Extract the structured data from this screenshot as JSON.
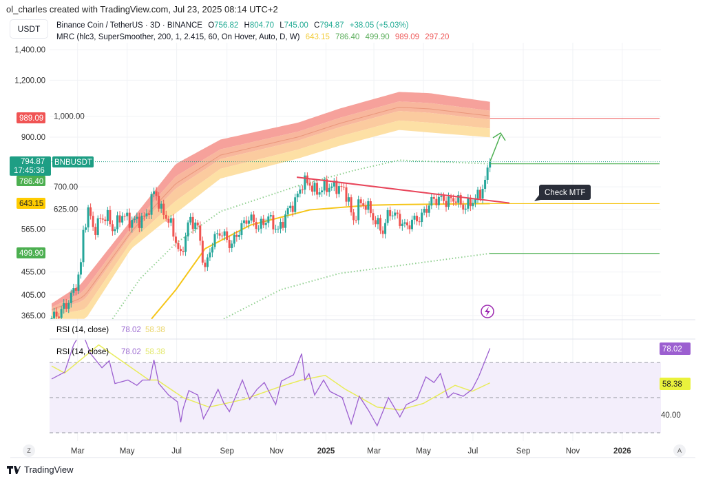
{
  "header": {
    "attribution": "ol_charles created with TradingView.com, Jul 23, 2025 08:14 UTC+2"
  },
  "currency_button": "USDT",
  "legend": {
    "symbol": "Binance Coin / TetherUS · 3D · BINANCE",
    "open_label": "O",
    "open": "756.82",
    "high_label": "H",
    "high": "804.70",
    "low_label": "L",
    "low": "745.00",
    "close_label": "C",
    "close": "794.87",
    "change": "+38.05 (+5.03%)",
    "mrc_name": "MRC (hlc3, SuperSmoother, 200, 1, 2.415, 60, On Hover, Auto, D, W)",
    "mrc_values": [
      "643.15",
      "786.40",
      "499.90",
      "989.09",
      "297.20"
    ]
  },
  "rsi_legend": {
    "name": "RSI (14, close)",
    "rsi": "78.02",
    "ma": "58.38"
  },
  "price_badges": {
    "r2": "989.09",
    "last": "794.87",
    "countdown": "17:45:36",
    "symbol": "BNBUSDT",
    "r1": "786.40",
    "mean": "643.15",
    "s1": "499.90"
  },
  "rsi_badges": {
    "rsi": "78.02",
    "ma": "58.38"
  },
  "annotation": {
    "label": "Check MTF"
  },
  "buttons": {
    "zoom_z": "Z",
    "auto_a": "A"
  },
  "footer": {
    "brand": "TradingView"
  },
  "colors": {
    "up": "#26a69a",
    "down": "#ef5350",
    "r2": "#f05454",
    "last": "#1e9e84",
    "band_green": "#4caf50",
    "mean": "#f5c518",
    "rsi": "#9c5fd0",
    "rsi_ma": "#e8ec5a",
    "trendline": "#e8455a",
    "arrow": "#4caf50",
    "annotation_bg": "#2a2e39"
  },
  "chart_data": [
    {
      "type": "candlestick",
      "title": "Binance Coin / TetherUS · 3D · BINANCE",
      "y_scale": "log",
      "y_ticks": [
        "1,400.00",
        "1,200.00",
        "1,000.00",
        "900.00",
        "700.00",
        "625.00",
        "565.00",
        "455.00",
        "405.00",
        "365.00"
      ],
      "x_ticks": [
        "Mar",
        "May",
        "Jul",
        "Sep",
        "Nov",
        "2025",
        "Mar",
        "May",
        "Jul",
        "Sep",
        "Nov",
        "2026"
      ],
      "x_range": [
        "2024-01-29",
        "2025-07-22"
      ],
      "grid": true,
      "close": [
        [
          "2024-01-29",
          360
        ],
        [
          "2024-02-08",
          370
        ],
        [
          "2024-02-18",
          390
        ],
        [
          "2024-02-27",
          420
        ],
        [
          "2024-03-05",
          470
        ],
        [
          "2024-03-08",
          560
        ],
        [
          "2024-03-14",
          620
        ],
        [
          "2024-03-22",
          560
        ],
        [
          "2024-03-30",
          600
        ],
        [
          "2024-04-08",
          600
        ],
        [
          "2024-04-14",
          560
        ],
        [
          "2024-04-24",
          610
        ],
        [
          "2024-05-04",
          590
        ],
        [
          "2024-05-14",
          590
        ],
        [
          "2024-05-24",
          600
        ],
        [
          "2024-06-04",
          690
        ],
        [
          "2024-06-12",
          620
        ],
        [
          "2024-06-22",
          590
        ],
        [
          "2024-07-02",
          520
        ],
        [
          "2024-07-06",
          490
        ],
        [
          "2024-07-16",
          590
        ],
        [
          "2024-07-26",
          580
        ],
        [
          "2024-08-05",
          460
        ],
        [
          "2024-08-14",
          530
        ],
        [
          "2024-08-24",
          560
        ],
        [
          "2024-09-06",
          520
        ],
        [
          "2024-09-18",
          570
        ],
        [
          "2024-09-28",
          600
        ],
        [
          "2024-10-10",
          570
        ],
        [
          "2024-10-22",
          600
        ],
        [
          "2024-11-03",
          560
        ],
        [
          "2024-11-15",
          620
        ],
        [
          "2024-11-24",
          650
        ],
        [
          "2024-12-04",
          720
        ],
        [
          "2024-12-12",
          710
        ],
        [
          "2024-12-20",
          680
        ],
        [
          "2024-12-30",
          700
        ],
        [
          "2025-01-08",
          700
        ],
        [
          "2025-01-18",
          700
        ],
        [
          "2025-01-28",
          670
        ],
        [
          "2025-02-03",
          580
        ],
        [
          "2025-02-10",
          640
        ],
        [
          "2025-02-20",
          640
        ],
        [
          "2025-03-02",
          590
        ],
        [
          "2025-03-12",
          560
        ],
        [
          "2025-03-20",
          620
        ],
        [
          "2025-03-30",
          600
        ],
        [
          "2025-04-09",
          570
        ],
        [
          "2025-04-18",
          590
        ],
        [
          "2025-04-28",
          600
        ],
        [
          "2025-05-10",
          650
        ],
        [
          "2025-05-20",
          660
        ],
        [
          "2025-05-30",
          650
        ],
        [
          "2025-06-10",
          660
        ],
        [
          "2025-06-20",
          630
        ],
        [
          "2025-06-30",
          650
        ],
        [
          "2025-07-08",
          670
        ],
        [
          "2025-07-14",
          700
        ],
        [
          "2025-07-18",
          740
        ],
        [
          "2025-07-22",
          794.87
        ]
      ],
      "mrc": {
        "upper_outer_cloud_top": [
          [
            "2024-01-29",
            388
          ],
          [
            "2024-03-04",
            426
          ],
          [
            "2024-05-06",
            591
          ],
          [
            "2024-06-30",
            786
          ],
          [
            "2024-08-24",
            889
          ],
          [
            "2024-11-28",
            969
          ],
          [
            "2025-01-18",
            1040
          ],
          [
            "2025-04-01",
            1131
          ],
          [
            "2025-05-09",
            1124
          ],
          [
            "2025-07-22",
            1076
          ]
        ],
        "upper_cloud_bottom": [
          [
            "2024-01-29",
            359
          ],
          [
            "2024-03-11",
            359
          ],
          [
            "2024-05-06",
            512
          ],
          [
            "2024-06-11",
            577
          ],
          [
            "2024-08-24",
            730
          ],
          [
            "2024-11-28",
            808
          ],
          [
            "2025-01-18",
            862
          ],
          [
            "2025-04-01",
            933
          ],
          [
            "2025-07-22",
            899
          ]
        ],
        "upper_inner": [
          [
            "2024-04-13",
            359
          ],
          [
            "2024-05-17",
            440
          ],
          [
            "2024-06-30",
            526
          ],
          [
            "2024-08-24",
            618
          ],
          [
            "2024-11-28",
            704
          ],
          [
            "2025-02-05",
            761
          ],
          [
            "2025-04-01",
            801
          ],
          [
            "2025-07-22",
            786.4
          ]
        ],
        "mean": [
          [
            "2024-05-31",
            359
          ],
          [
            "2024-06-30",
            416
          ],
          [
            "2024-08-05",
            512
          ],
          [
            "2024-09-30",
            577
          ],
          [
            "2024-12-12",
            623
          ],
          [
            "2025-02-24",
            638
          ],
          [
            "2025-04-01",
            640
          ],
          [
            "2025-07-22",
            643.15
          ]
        ],
        "lower_inner": [
          [
            "2024-08-28",
            359
          ],
          [
            "2024-11-06",
            416
          ],
          [
            "2025-01-18",
            452
          ],
          [
            "2025-04-01",
            470
          ],
          [
            "2025-07-22",
            499.9
          ]
        ],
        "levels": {
          "mean": 643.15,
          "upper_inner": 786.4,
          "lower_inner": 499.9,
          "upper_outer": 989.09,
          "lower_outer": 297.2
        }
      },
      "last_price": 794.87,
      "trendline": [
        [
          "2024-11-26",
          735
        ],
        [
          "2025-08-15",
          645
        ]
      ]
    },
    {
      "type": "line",
      "title": "RSI (14, close)",
      "y_ticks": [
        "40.00"
      ],
      "bands": [
        30,
        50,
        70
      ],
      "series": [
        {
          "name": "RSI",
          "values": [
            [
              "2024-01-29",
              60.6
            ],
            [
              "2024-02-14",
              64.5
            ],
            [
              "2024-02-25",
              80
            ],
            [
              "2024-03-06",
              88
            ],
            [
              "2024-03-17",
              75
            ],
            [
              "2024-03-31",
              67
            ],
            [
              "2024-04-09",
              71
            ],
            [
              "2024-04-16",
              58
            ],
            [
              "2024-05-02",
              60
            ],
            [
              "2024-05-13",
              57
            ],
            [
              "2024-05-20",
              60
            ],
            [
              "2024-05-29",
              60
            ],
            [
              "2024-06-03",
              71.5
            ],
            [
              "2024-06-09",
              58
            ],
            [
              "2024-06-21",
              51.5
            ],
            [
              "2024-07-02",
              47.6
            ],
            [
              "2024-07-06",
              36
            ],
            [
              "2024-07-09",
              43.7
            ],
            [
              "2024-07-16",
              54
            ],
            [
              "2024-07-27",
              51.5
            ],
            [
              "2024-08-03",
              38
            ],
            [
              "2024-08-10",
              44
            ],
            [
              "2024-08-21",
              54.7
            ],
            [
              "2024-08-28",
              47
            ],
            [
              "2024-09-04",
              42
            ],
            [
              "2024-09-20",
              60
            ],
            [
              "2024-09-29",
              49
            ],
            [
              "2024-10-08",
              54.7
            ],
            [
              "2024-10-17",
              58.6
            ],
            [
              "2024-10-31",
              46
            ],
            [
              "2024-11-07",
              59.4
            ],
            [
              "2024-11-22",
              63
            ],
            [
              "2024-12-02",
              75
            ],
            [
              "2024-12-06",
              60
            ],
            [
              "2024-12-11",
              63.7
            ],
            [
              "2024-12-18",
              51.5
            ],
            [
              "2024-12-29",
              60
            ],
            [
              "2025-01-06",
              53.5
            ],
            [
              "2025-01-21",
              50
            ],
            [
              "2025-02-01",
              35
            ],
            [
              "2025-02-11",
              50.8
            ],
            [
              "2025-02-22",
              43
            ],
            [
              "2025-03-05",
              34
            ],
            [
              "2025-03-19",
              50
            ],
            [
              "2025-04-02",
              39
            ],
            [
              "2025-04-10",
              46
            ],
            [
              "2025-04-23",
              49
            ],
            [
              "2025-05-04",
              61.8
            ],
            [
              "2025-05-14",
              58.6
            ],
            [
              "2025-05-22",
              63.7
            ],
            [
              "2025-05-31",
              50
            ],
            [
              "2025-06-07",
              52.7
            ],
            [
              "2025-06-19",
              50.8
            ],
            [
              "2025-06-30",
              54.7
            ],
            [
              "2025-07-08",
              61.8
            ],
            [
              "2025-07-22",
              78.02
            ]
          ]
        },
        {
          "name": "RSI-based MA",
          "values": [
            [
              "2024-01-29",
              68
            ],
            [
              "2024-02-14",
              64
            ],
            [
              "2024-03-27",
              80
            ],
            [
              "2024-05-28",
              60
            ],
            [
              "2024-06-07",
              60
            ],
            [
              "2024-07-09",
              50
            ],
            [
              "2024-08-10",
              44.6
            ],
            [
              "2024-09-22",
              49
            ],
            [
              "2024-11-04",
              56
            ],
            [
              "2024-12-02",
              60
            ],
            [
              "2024-12-31",
              62.7
            ],
            [
              "2025-01-24",
              55
            ],
            [
              "2025-03-05",
              44.6
            ],
            [
              "2025-04-02",
              43
            ],
            [
              "2025-05-01",
              46.7
            ],
            [
              "2025-06-09",
              57
            ],
            [
              "2025-06-30",
              53.6
            ],
            [
              "2025-07-22",
              58.38
            ]
          ]
        }
      ]
    }
  ]
}
